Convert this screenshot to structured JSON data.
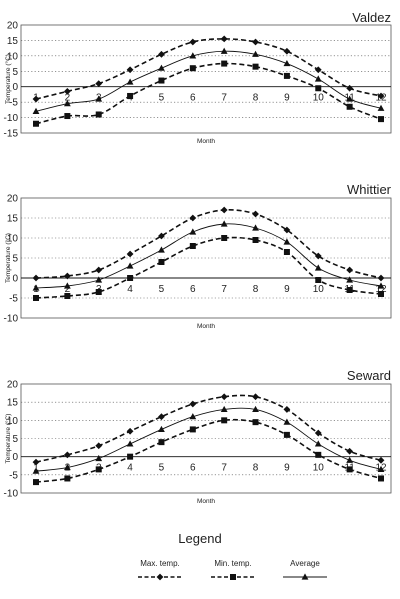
{
  "chart_data": [
    {
      "type": "line",
      "title": "Valdez",
      "xlabel": "Month",
      "ylabel": "Temperature (°C)",
      "ylim": [
        -15,
        20
      ],
      "yticks": [
        20,
        15,
        10,
        5,
        0,
        -5,
        -10,
        -15
      ],
      "xlim": [
        1,
        12
      ],
      "xticks": [
        1,
        2,
        3,
        4,
        5,
        6,
        7,
        8,
        9,
        10,
        11,
        12
      ],
      "grid": true,
      "series": [
        {
          "name": "Max. temp.",
          "x": [
            1,
            2,
            3,
            4,
            5,
            6,
            7,
            8,
            9,
            10,
            11,
            12
          ],
          "values": [
            -4,
            -1.5,
            1,
            5.5,
            10.5,
            14.5,
            15.5,
            14.5,
            11.5,
            5.5,
            -0.5,
            -3
          ]
        },
        {
          "name": "Min. temp.",
          "x": [
            1,
            2,
            3,
            4,
            5,
            6,
            7,
            8,
            9,
            10,
            11,
            12
          ],
          "values": [
            -12,
            -9.5,
            -9,
            -3,
            2,
            6,
            7.5,
            6.5,
            3.5,
            -0.5,
            -6.5,
            -10.5
          ]
        },
        {
          "name": "Average",
          "x": [
            1,
            2,
            3,
            4,
            5,
            6,
            7,
            8,
            9,
            10,
            11,
            12
          ],
          "values": [
            -8,
            -5.5,
            -4,
            1.5,
            6,
            10,
            11.5,
            10.5,
            7.5,
            2.5,
            -4,
            -7
          ]
        }
      ]
    },
    {
      "type": "line",
      "title": "Whittier",
      "xlabel": "Month",
      "ylabel": "Temperature (°C)",
      "ylim": [
        -10,
        20
      ],
      "yticks": [
        20,
        15,
        10,
        5,
        0,
        -5,
        -10
      ],
      "xlim": [
        1,
        12
      ],
      "xticks": [
        1,
        2,
        3,
        4,
        5,
        6,
        7,
        8,
        9,
        10,
        11,
        12
      ],
      "grid": true,
      "series": [
        {
          "name": "Max. temp.",
          "x": [
            1,
            2,
            3,
            4,
            5,
            6,
            7,
            8,
            9,
            10,
            11,
            12
          ],
          "values": [
            0,
            0.5,
            2,
            6,
            10.5,
            15,
            17,
            16,
            12,
            5.5,
            2,
            0
          ]
        },
        {
          "name": "Min. temp.",
          "x": [
            1,
            2,
            3,
            4,
            5,
            6,
            7,
            8,
            9,
            10,
            11,
            12
          ],
          "values": [
            -5,
            -4.5,
            -3.5,
            0,
            4,
            8,
            10,
            9.5,
            6.5,
            -0.5,
            -3,
            -4
          ]
        },
        {
          "name": "Average",
          "x": [
            1,
            2,
            3,
            4,
            5,
            6,
            7,
            8,
            9,
            10,
            11,
            12
          ],
          "values": [
            -2.5,
            -2,
            -0.5,
            3,
            7,
            11.5,
            13.5,
            12.5,
            9,
            2.5,
            -0.5,
            -2
          ]
        }
      ]
    },
    {
      "type": "line",
      "title": "Seward",
      "xlabel": "Month",
      "ylabel": "Temperature (°C)",
      "ylim": [
        -10,
        20
      ],
      "yticks": [
        20,
        15,
        10,
        5,
        0,
        -5,
        -10
      ],
      "xlim": [
        1,
        12
      ],
      "xticks": [
        1,
        2,
        3,
        4,
        5,
        6,
        7,
        8,
        9,
        10,
        11,
        12
      ],
      "grid": true,
      "series": [
        {
          "name": "Max. temp.",
          "x": [
            1,
            2,
            3,
            4,
            5,
            6,
            7,
            8,
            9,
            10,
            11,
            12
          ],
          "values": [
            -1.5,
            0.5,
            3,
            7,
            11,
            14.5,
            16.5,
            16.5,
            13,
            6.5,
            1.5,
            -1
          ]
        },
        {
          "name": "Min. temp.",
          "x": [
            1,
            2,
            3,
            4,
            5,
            6,
            7,
            8,
            9,
            10,
            11,
            12
          ],
          "values": [
            -7,
            -6,
            -3.5,
            0,
            4,
            7.5,
            10,
            9.5,
            6,
            0.5,
            -3.5,
            -6
          ]
        },
        {
          "name": "Average",
          "x": [
            1,
            2,
            3,
            4,
            5,
            6,
            7,
            8,
            9,
            10,
            11,
            12
          ],
          "values": [
            -4,
            -3,
            -0.5,
            3.5,
            7.5,
            11,
            13,
            13,
            9.5,
            3.5,
            -1,
            -3.5
          ]
        }
      ]
    }
  ],
  "legend": {
    "title": "Legend",
    "items": [
      {
        "label": "Max. temp.",
        "marker": "diamond",
        "dashed": true
      },
      {
        "label": "Min. temp.",
        "marker": "square",
        "dashed": true
      },
      {
        "label": "Average",
        "marker": "triangle",
        "dashed": false
      }
    ]
  },
  "colors": {
    "ink": "#111111",
    "grid": "#555555",
    "plot_bg": "#ffffff"
  }
}
